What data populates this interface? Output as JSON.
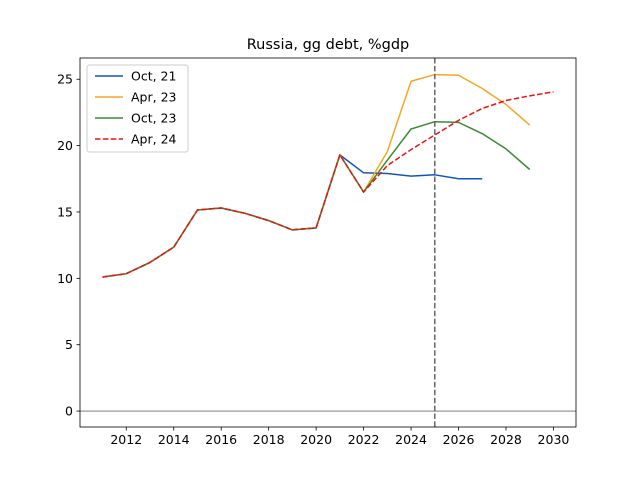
{
  "chart_data": {
    "type": "line",
    "title": "Russia, gg debt, %gdp",
    "xlabel": "",
    "ylabel": "",
    "xlim": [
      2010.05,
      2030.95
    ],
    "ylim": [
      -1.2,
      26.6
    ],
    "xticks": [
      2012,
      2014,
      2016,
      2018,
      2020,
      2022,
      2024,
      2026,
      2028,
      2030
    ],
    "yticks": [
      0,
      5,
      10,
      15,
      20,
      25
    ],
    "grid": false,
    "legend": "top-left",
    "zero_line": {
      "y": 0,
      "color": "#aaaaaa"
    },
    "vline": {
      "x": 2025,
      "color": "#666666",
      "style": "dashed"
    },
    "series": [
      {
        "name": "Oct, 21",
        "color": "#1155bb",
        "dash": "solid",
        "x": [
          2011,
          2012,
          2013,
          2014,
          2015,
          2016,
          2017,
          2018,
          2019,
          2020,
          2021,
          2022,
          2023,
          2024,
          2025,
          2026,
          2027
        ],
        "values": [
          10.1,
          10.35,
          11.2,
          12.35,
          15.15,
          15.3,
          14.9,
          14.35,
          13.65,
          13.8,
          19.3,
          17.95,
          17.9,
          17.7,
          17.8,
          17.5,
          17.5
        ]
      },
      {
        "name": "Apr, 23",
        "color": "#f5a623",
        "dash": "solid",
        "x": [
          2011,
          2012,
          2013,
          2014,
          2015,
          2016,
          2017,
          2018,
          2019,
          2020,
          2021,
          2022,
          2023,
          2024,
          2025,
          2026,
          2027,
          2028,
          2029
        ],
        "values": [
          10.1,
          10.35,
          11.2,
          12.35,
          15.15,
          15.3,
          14.9,
          14.35,
          13.65,
          13.8,
          19.3,
          16.5,
          19.55,
          24.85,
          25.35,
          25.3,
          24.3,
          23.1,
          21.55
        ]
      },
      {
        "name": "Oct, 23",
        "color": "#3a8a35",
        "dash": "solid",
        "x": [
          2011,
          2012,
          2013,
          2014,
          2015,
          2016,
          2017,
          2018,
          2019,
          2020,
          2021,
          2022,
          2023,
          2024,
          2025,
          2026,
          2027,
          2028,
          2029
        ],
        "values": [
          10.1,
          10.35,
          11.2,
          12.35,
          15.15,
          15.3,
          14.9,
          14.35,
          13.65,
          13.8,
          19.3,
          16.5,
          18.9,
          21.25,
          21.8,
          21.75,
          20.9,
          19.75,
          18.2
        ]
      },
      {
        "name": "Apr, 24",
        "color": "#ee1111",
        "dash": "dashed",
        "x": [
          2011,
          2012,
          2013,
          2014,
          2015,
          2016,
          2017,
          2018,
          2019,
          2020,
          2021,
          2022,
          2023,
          2024,
          2025,
          2026,
          2027,
          2028,
          2029,
          2030
        ],
        "values": [
          10.1,
          10.35,
          11.2,
          12.35,
          15.15,
          15.3,
          14.9,
          14.35,
          13.65,
          13.8,
          19.3,
          16.5,
          18.5,
          19.7,
          20.8,
          21.9,
          22.8,
          23.4,
          23.75,
          24.05
        ]
      }
    ]
  }
}
